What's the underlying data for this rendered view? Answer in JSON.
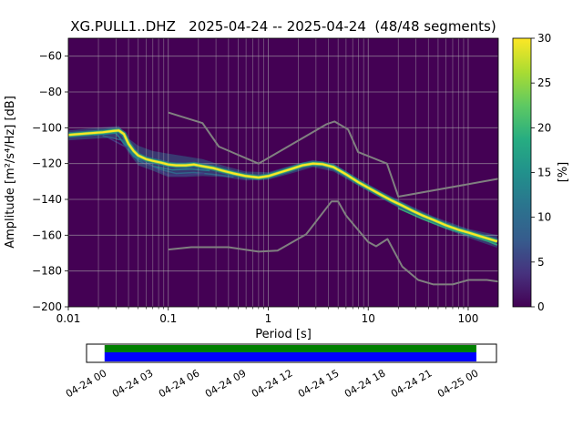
{
  "chart_data": {
    "type": "heatmap",
    "title": "XG.PULL1..DHZ   2025-04-24 -- 2025-04-24  (48/48 segments)",
    "xlabel": "Period [s]",
    "ylabel": "Amplitude [m²/s⁴/Hz] [dB]",
    "xscale": "log",
    "xlim": [
      0.01,
      200
    ],
    "ylim": [
      -200,
      -50
    ],
    "x_ticks": [
      0.01,
      0.1,
      1,
      10,
      100
    ],
    "x_tick_labels": [
      "0.01",
      "0.1",
      "1",
      "10",
      "100"
    ],
    "y_ticks": [
      -60,
      -80,
      -100,
      -120,
      -140,
      -160,
      -180,
      -200
    ],
    "grid": true,
    "legend_position": "none",
    "background_color": "#440154",
    "grid_color": "#b0b0b0",
    "colorbar": {
      "label": "[%]",
      "min": 0,
      "max": 30,
      "ticks": [
        0,
        5,
        10,
        15,
        20,
        25,
        30
      ],
      "colormap": "viridis",
      "colormap_stops": [
        [
          0,
          "#440154"
        ],
        [
          0.125,
          "#46327e"
        ],
        [
          0.25,
          "#365c8d"
        ],
        [
          0.375,
          "#2b748e"
        ],
        [
          0.5,
          "#21918c"
        ],
        [
          0.625,
          "#27ad81"
        ],
        [
          0.75,
          "#5ec962"
        ],
        [
          0.875,
          "#aadc32"
        ],
        [
          1,
          "#fde725"
        ]
      ]
    },
    "psd_mode": {
      "label": "PSD highest-probability ridge",
      "color": "#fde725",
      "points": [
        [
          0.01,
          -104.0
        ],
        [
          0.013,
          -103.5
        ],
        [
          0.017,
          -103.0
        ],
        [
          0.022,
          -102.5
        ],
        [
          0.028,
          -101.8
        ],
        [
          0.032,
          -101.5
        ],
        [
          0.036,
          -103.5
        ],
        [
          0.04,
          -109.0
        ],
        [
          0.045,
          -113.0
        ],
        [
          0.05,
          -115.5
        ],
        [
          0.06,
          -117.5
        ],
        [
          0.07,
          -118.5
        ],
        [
          0.085,
          -119.5
        ],
        [
          0.1,
          -120.5
        ],
        [
          0.12,
          -121.0
        ],
        [
          0.15,
          -121.0
        ],
        [
          0.18,
          -120.5
        ],
        [
          0.22,
          -121.5
        ],
        [
          0.28,
          -122.5
        ],
        [
          0.35,
          -124.0
        ],
        [
          0.45,
          -125.5
        ],
        [
          0.6,
          -127.0
        ],
        [
          0.8,
          -127.8
        ],
        [
          1.0,
          -127.0
        ],
        [
          1.3,
          -125.0
        ],
        [
          1.7,
          -123.0
        ],
        [
          2.2,
          -121.0
        ],
        [
          2.8,
          -120.0
        ],
        [
          3.5,
          -120.3
        ],
        [
          4.5,
          -122.0
        ],
        [
          6.0,
          -126.0
        ],
        [
          8.0,
          -130.5
        ],
        [
          10.0,
          -133.5
        ],
        [
          13.0,
          -137.0
        ],
        [
          17.0,
          -140.5
        ],
        [
          22.0,
          -143.5
        ],
        [
          28.0,
          -146.5
        ],
        [
          35.0,
          -149.0
        ],
        [
          45.0,
          -151.5
        ],
        [
          60.0,
          -154.5
        ],
        [
          80.0,
          -157.0
        ],
        [
          100.0,
          -158.5
        ],
        [
          130.0,
          -160.5
        ],
        [
          160.0,
          -162.0
        ],
        [
          195.0,
          -163.5
        ]
      ]
    },
    "psd_band": {
      "fill_color": "#2e6f8e",
      "upper": [
        [
          0.01,
          -101.5
        ],
        [
          0.02,
          -100.0
        ],
        [
          0.032,
          -99.0
        ],
        [
          0.04,
          -106.0
        ],
        [
          0.05,
          -110.0
        ],
        [
          0.07,
          -113.0
        ],
        [
          0.1,
          -114.5
        ],
        [
          0.15,
          -116.0
        ],
        [
          0.22,
          -117.5
        ],
        [
          0.35,
          -121.0
        ],
        [
          0.6,
          -124.5
        ],
        [
          1.0,
          -124.8
        ],
        [
          1.7,
          -121.0
        ],
        [
          2.8,
          -118.0
        ],
        [
          4.5,
          -120.0
        ],
        [
          8.0,
          -128.5
        ],
        [
          13.0,
          -135.0
        ],
        [
          22.0,
          -141.5
        ],
        [
          45.0,
          -149.5
        ],
        [
          100.0,
          -156.5
        ],
        [
          195.0,
          -160.0
        ]
      ],
      "lower": [
        [
          0.01,
          -107.0
        ],
        [
          0.02,
          -106.0
        ],
        [
          0.032,
          -105.5
        ],
        [
          0.04,
          -114.0
        ],
        [
          0.05,
          -121.0
        ],
        [
          0.07,
          -124.0
        ],
        [
          0.1,
          -127.5
        ],
        [
          0.15,
          -127.5
        ],
        [
          0.22,
          -127.0
        ],
        [
          0.35,
          -127.5
        ],
        [
          0.6,
          -129.5
        ],
        [
          1.0,
          -129.0
        ],
        [
          1.7,
          -125.5
        ],
        [
          2.8,
          -122.0
        ],
        [
          4.5,
          -124.5
        ],
        [
          8.0,
          -132.5
        ],
        [
          13.0,
          -139.0
        ],
        [
          22.0,
          -146.0
        ],
        [
          45.0,
          -154.0
        ],
        [
          100.0,
          -161.5
        ],
        [
          195.0,
          -167.0
        ]
      ]
    },
    "strands": [
      {
        "color": "#31688e",
        "points": [
          [
            0.022,
            -104.5
          ],
          [
            0.035,
            -107.0
          ],
          [
            0.05,
            -118.5
          ],
          [
            0.08,
            -123.0
          ],
          [
            0.12,
            -125.5
          ],
          [
            0.18,
            -125.0
          ],
          [
            0.28,
            -126.0
          ],
          [
            0.45,
            -127.5
          ]
        ]
      },
      {
        "color": "#26828e",
        "points": [
          [
            0.018,
            -103.8
          ],
          [
            0.03,
            -103.0
          ],
          [
            0.045,
            -116.0
          ],
          [
            0.07,
            -121.5
          ],
          [
            0.11,
            -123.5
          ],
          [
            0.17,
            -123.0
          ],
          [
            0.26,
            -124.0
          ]
        ]
      },
      {
        "color": "#443983",
        "points": [
          [
            0.025,
            -105.5
          ],
          [
            0.04,
            -111.5
          ],
          [
            0.06,
            -120.0
          ],
          [
            0.1,
            -126.5
          ],
          [
            0.15,
            -126.5
          ],
          [
            0.23,
            -125.5
          ]
        ]
      },
      {
        "color": "#35b779",
        "points": [
          [
            20.0,
            -145.0
          ],
          [
            35.0,
            -151.0
          ],
          [
            60.0,
            -156.0
          ],
          [
            100.0,
            -160.0
          ],
          [
            160.0,
            -163.5
          ],
          [
            195.0,
            -165.5
          ]
        ]
      }
    ],
    "noise_models": {
      "label": "Peterson NHNM / NLNM reference curves",
      "color": "#808080",
      "nhnm": [
        [
          0.1,
          -91.5
        ],
        [
          0.22,
          -97.4
        ],
        [
          0.32,
          -110.5
        ],
        [
          0.8,
          -120.0
        ],
        [
          3.8,
          -98.1
        ],
        [
          4.6,
          -96.5
        ],
        [
          6.3,
          -101.0
        ],
        [
          7.9,
          -113.5
        ],
        [
          15.4,
          -120.0
        ],
        [
          20.0,
          -138.5
        ],
        [
          200.0,
          -128.5
        ]
      ],
      "nlnm": [
        [
          0.1,
          -168.0
        ],
        [
          0.17,
          -166.7
        ],
        [
          0.4,
          -166.7
        ],
        [
          0.8,
          -169.2
        ],
        [
          1.24,
          -168.6
        ],
        [
          2.4,
          -159.4
        ],
        [
          4.3,
          -141.1
        ],
        [
          5.0,
          -141.1
        ],
        [
          6.0,
          -149.0
        ],
        [
          10.0,
          -163.8
        ],
        [
          12.0,
          -166.2
        ],
        [
          15.6,
          -162.1
        ],
        [
          21.9,
          -177.5
        ],
        [
          31.6,
          -185.0
        ],
        [
          45.0,
          -187.5
        ],
        [
          70.0,
          -187.5
        ],
        [
          101.0,
          -185.0
        ],
        [
          154.0,
          -185.0
        ],
        [
          200.0,
          -185.9
        ]
      ]
    }
  },
  "timeline": {
    "labels": [
      "04-24 00",
      "04-24 03",
      "04-24 06",
      "04-24 09",
      "04-24 12",
      "04-24 15",
      "04-24 18",
      "04-24 21",
      "04-25 00"
    ],
    "top_color": "#008000",
    "bottom_color": "#0000ff",
    "coverage_start_frac": 0.044,
    "coverage_end_frac": 0.951
  }
}
